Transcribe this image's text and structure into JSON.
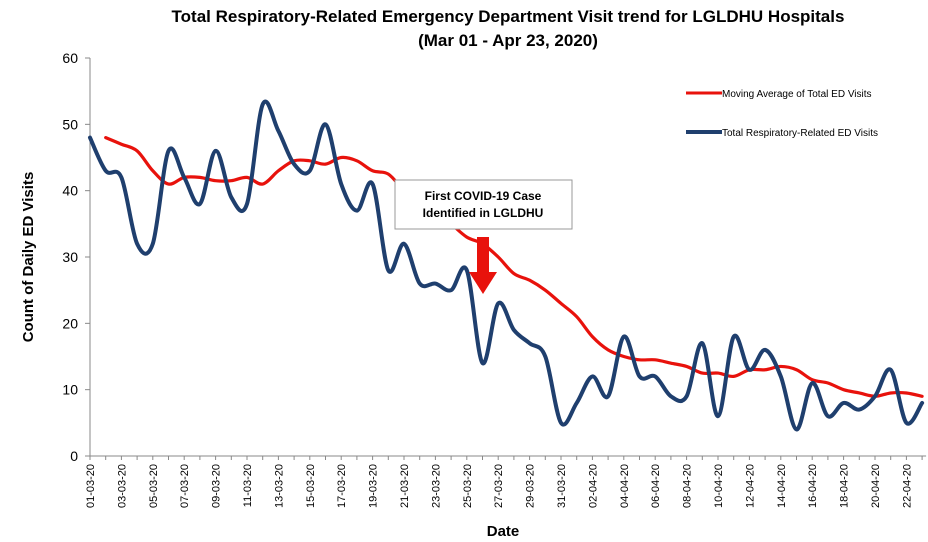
{
  "chart_data": {
    "type": "line",
    "title": "Total Respiratory-Related Emergency Department Visit trend for LGLDHU Hospitals",
    "subtitle": "(Mar 01 - Apr 23, 2020)",
    "x_label": "Date",
    "y_label": "Count of Daily ED Visits",
    "categories": [
      "01-03-20",
      null,
      "03-03-20",
      null,
      "05-03-20",
      null,
      "07-03-20",
      null,
      "09-03-20",
      null,
      "11-03-20",
      null,
      "13-03-20",
      null,
      "15-03-20",
      null,
      "17-03-20",
      null,
      "19-03-20",
      null,
      "21-03-20",
      null,
      "23-03-20",
      null,
      "25-03-20",
      null,
      "27-03-20",
      null,
      "29-03-20",
      null,
      "31-03-20",
      null,
      "02-04-20",
      null,
      "04-04-20",
      null,
      "06-04-20",
      null,
      "08-04-20",
      null,
      "10-04-20",
      null,
      "12-04-20",
      null,
      "14-04-20",
      null,
      "16-04-20",
      null,
      "18-04-20",
      null,
      "20-04-20",
      null,
      "22-04-20",
      null
    ],
    "series": [
      {
        "name": "Moving Average of Total ED Visits",
        "color": "#e8120c",
        "values": [
          null,
          48,
          47,
          46,
          43,
          41,
          42,
          42,
          41.5,
          41.5,
          42,
          41,
          43,
          44.5,
          44.5,
          44,
          45,
          44.5,
          43,
          42.5,
          40,
          38,
          37,
          35,
          33,
          32,
          30,
          27.5,
          26.5,
          25,
          23,
          21,
          18,
          16,
          15,
          14.5,
          14.5,
          14,
          13.5,
          12.5,
          12.5,
          12,
          13,
          13,
          13.5,
          13,
          11.5,
          11,
          10,
          9.5,
          9,
          9.5,
          9.5,
          9
        ]
      },
      {
        "name": "Total Respiratory-Related ED Visits",
        "color": "#1f3f6e",
        "values": [
          48,
          43,
          42,
          32,
          32,
          46,
          42,
          38,
          46,
          39,
          38,
          53,
          49,
          44,
          43,
          50,
          41,
          37,
          41,
          28,
          32,
          26,
          26,
          25,
          28,
          14,
          23,
          19,
          17,
          15,
          5,
          8,
          12,
          9,
          18,
          12,
          12,
          9,
          9,
          17,
          6,
          18,
          13,
          16,
          12,
          4,
          11,
          6,
          8,
          7,
          9,
          13,
          5,
          8
        ]
      }
    ],
    "ylim": [
      0,
      60
    ],
    "yticks": [
      0,
      10,
      20,
      30,
      40,
      50,
      60
    ],
    "annotation": [
      "First COVID-19 Case",
      "Identified in LGLDHU"
    ],
    "legend": "top-right",
    "grid": false
  }
}
